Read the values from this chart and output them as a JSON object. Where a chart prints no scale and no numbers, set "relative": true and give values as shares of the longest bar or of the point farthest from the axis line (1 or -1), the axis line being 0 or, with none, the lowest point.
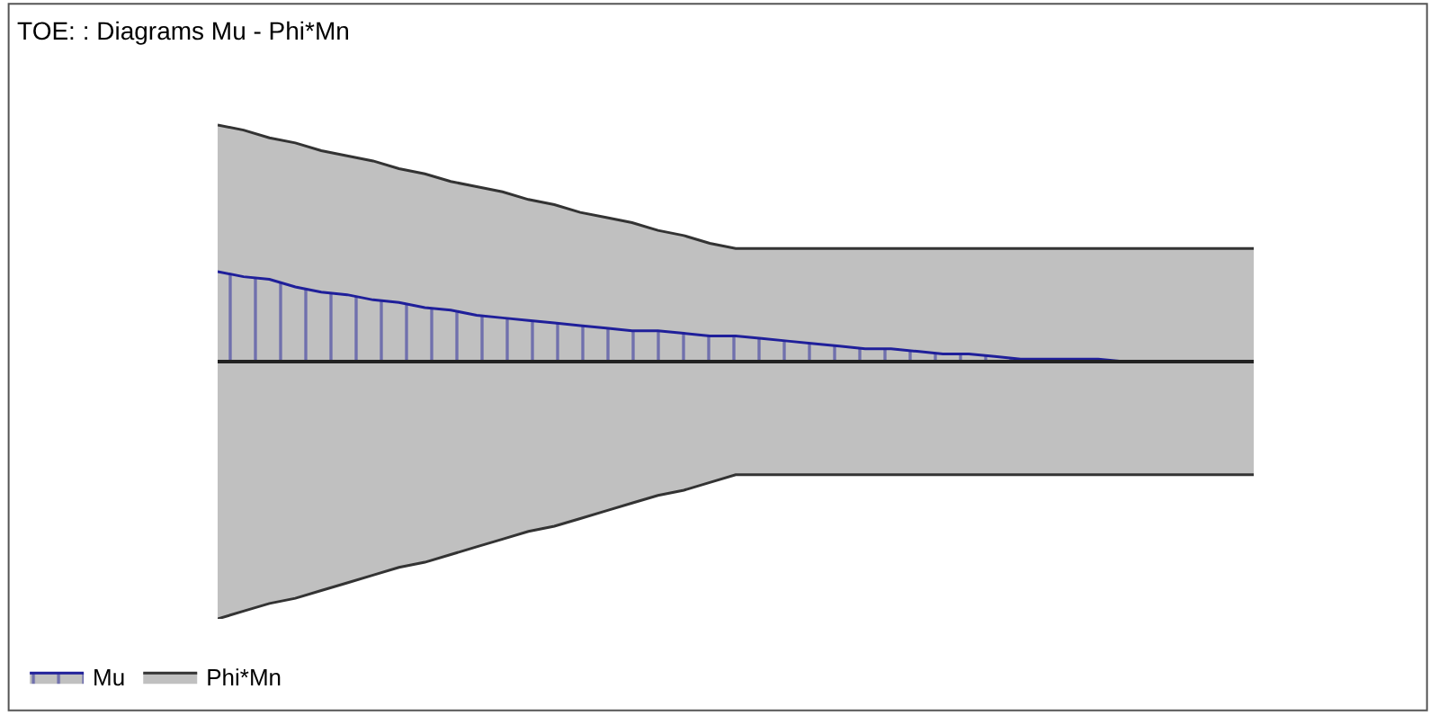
{
  "chart_data": {
    "type": "area",
    "title": "TOE: : Diagrams Mu - Phi*Mn",
    "relative": true,
    "categories": [
      null,
      null,
      null,
      null,
      null,
      null,
      null,
      null,
      null,
      null,
      null,
      null,
      null,
      null,
      null,
      null,
      null,
      null,
      null,
      null,
      null,
      null,
      null,
      null,
      null,
      null,
      null,
      null,
      null,
      null,
      null,
      null,
      null,
      null,
      null,
      null,
      null,
      null,
      null,
      null,
      null
    ],
    "series": [
      {
        "name": "Phi*Mn",
        "color": "#c0c0c0",
        "values": [
          0.92,
          0.9,
          0.87,
          0.85,
          0.82,
          0.8,
          0.78,
          0.75,
          0.73,
          0.7,
          0.68,
          0.66,
          0.63,
          0.61,
          0.58,
          0.56,
          0.54,
          0.51,
          0.49,
          0.46,
          0.44,
          0.44,
          0.44,
          0.44,
          0.44,
          0.44,
          0.44,
          0.44,
          0.44,
          0.44,
          0.44,
          0.44,
          0.44,
          0.44,
          0.44,
          0.44,
          0.44,
          0.44,
          0.44,
          0.44,
          0.44
        ]
      },
      {
        "color": "#c0c0c0",
        "values": [
          -1,
          -0.97,
          -0.94,
          -0.92,
          -0.89,
          -0.86,
          -0.83,
          -0.8,
          -0.78,
          -0.75,
          -0.72,
          -0.69,
          -0.66,
          -0.64,
          -0.61,
          -0.58,
          -0.55,
          -0.52,
          -0.5,
          -0.47,
          -0.44,
          -0.44,
          -0.44,
          -0.44,
          -0.44,
          -0.44,
          -0.44,
          -0.44,
          -0.44,
          -0.44,
          -0.44,
          -0.44,
          -0.44,
          -0.44,
          -0.44,
          -0.44,
          -0.44,
          -0.44,
          -0.44,
          -0.44,
          -0.44
        ]
      },
      {
        "name": "Mu",
        "color": "#1f1f9a",
        "values": [
          0.35,
          0.33,
          0.32,
          0.29,
          0.27,
          0.26,
          0.24,
          0.23,
          0.21,
          0.2,
          0.18,
          0.17,
          0.16,
          0.15,
          0.14,
          0.13,
          0.12,
          0.12,
          0.11,
          0.1,
          0.1,
          0.09,
          0.08,
          0.07,
          0.06,
          0.05,
          0.05,
          0.04,
          0.03,
          0.03,
          0.02,
          0.01,
          0.01,
          0.01,
          0.01,
          0,
          null,
          null,
          null,
          null,
          null
        ]
      }
    ],
    "legend": "bottom left"
  }
}
